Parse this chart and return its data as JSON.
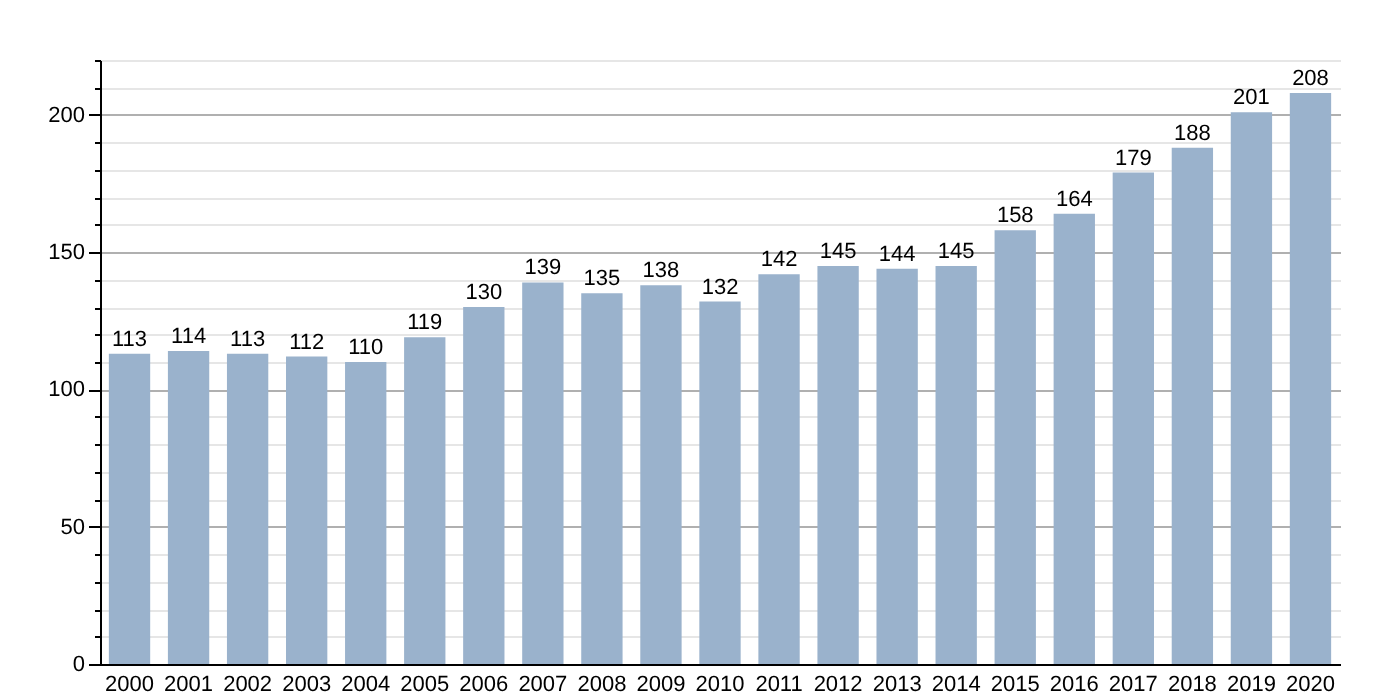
{
  "chart_data": {
    "type": "bar",
    "categories": [
      "2000",
      "2001",
      "2002",
      "2003",
      "2004",
      "2005",
      "2006",
      "2007",
      "2008",
      "2009",
      "2010",
      "2011",
      "2012",
      "2013",
      "2014",
      "2015",
      "2016",
      "2017",
      "2018",
      "2019",
      "2020"
    ],
    "values": [
      113,
      114,
      113,
      112,
      110,
      119,
      130,
      139,
      135,
      138,
      132,
      142,
      145,
      144,
      145,
      158,
      164,
      179,
      188,
      201,
      208
    ],
    "color": "#9ab2cc",
    "data_labels": true,
    "grid": "y",
    "ylim": [
      0,
      220
    ],
    "yticks": [
      0,
      {
        "value": 10,
        "label": null
      },
      {
        "value": 20,
        "label": null
      },
      {
        "value": 30,
        "label": null
      },
      {
        "value": 40,
        "label": null
      },
      50,
      {
        "value": 60,
        "label": null
      },
      {
        "value": 70,
        "label": null
      },
      {
        "value": 80,
        "label": null
      },
      {
        "value": 90,
        "label": null
      },
      100,
      {
        "value": 110,
        "label": null
      },
      {
        "value": 120,
        "label": null
      },
      {
        "value": 130,
        "label": null
      },
      {
        "value": 140,
        "label": null
      },
      150,
      {
        "value": 160,
        "label": null
      },
      {
        "value": 170,
        "label": null
      },
      {
        "value": 180,
        "label": null
      },
      {
        "value": 190,
        "label": null
      },
      200,
      {
        "value": 210,
        "label": null
      },
      {
        "value": 220,
        "label": null
      }
    ]
  }
}
